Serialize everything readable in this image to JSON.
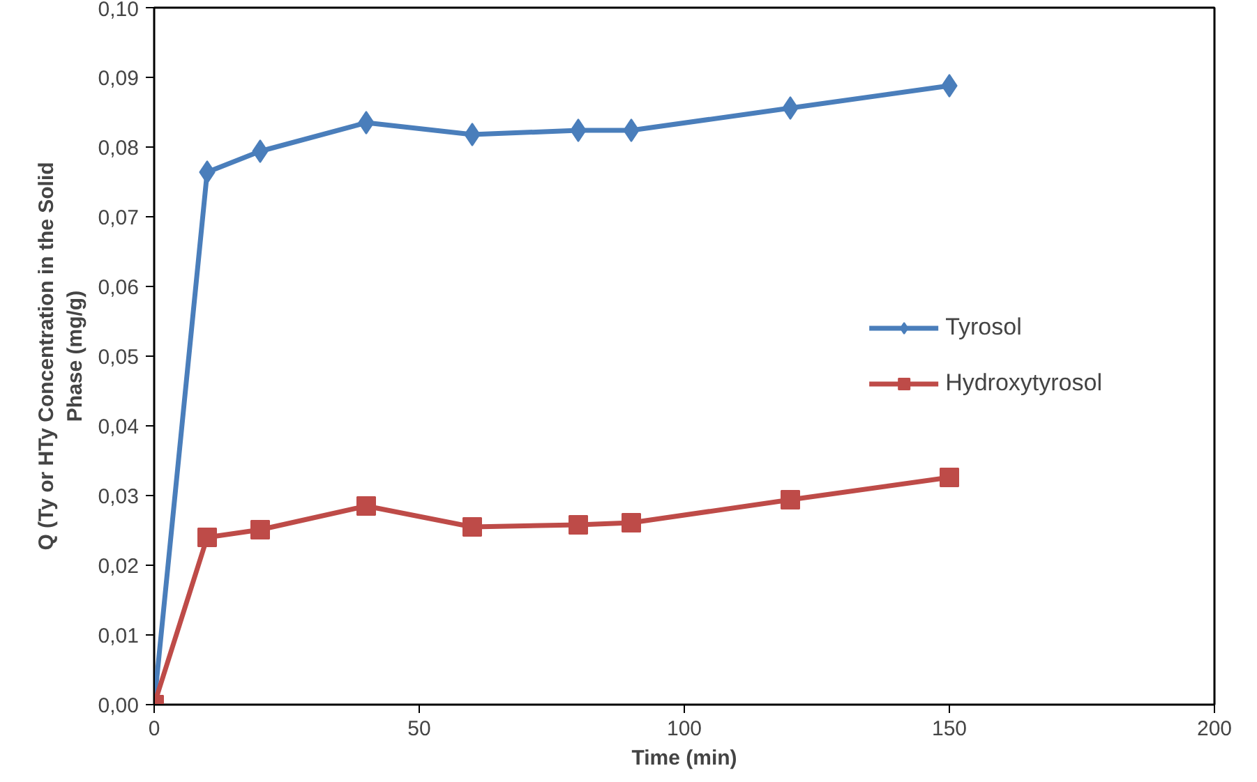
{
  "chart_data": {
    "type": "line",
    "xlabel": "Time (min)",
    "ylabel": "Q (Ty or HTy Concentration in the Solid\nPhase (mg/g)",
    "x": [
      0,
      10,
      20,
      40,
      60,
      80,
      90,
      120,
      150
    ],
    "series": [
      {
        "name": "Tyrosol",
        "color": "#4a7ebb",
        "marker": "diamond",
        "values": [
          0,
          0.0764,
          0.0794,
          0.0835,
          0.0818,
          0.0824,
          0.0824,
          0.0856,
          0.0888
        ]
      },
      {
        "name": "Hydroxytyrosol",
        "color": "#be4b48",
        "marker": "square",
        "values": [
          0,
          0.024,
          0.0251,
          0.0285,
          0.0255,
          0.0258,
          0.0261,
          0.0294,
          0.0326
        ]
      }
    ],
    "xlim": [
      0,
      200
    ],
    "xticks": [
      0,
      50,
      100,
      150,
      200
    ],
    "ylim": [
      0,
      0.1
    ],
    "yticks": [
      {
        "value": 0,
        "label": "0,00"
      },
      {
        "value": 0.01,
        "label": "0,01"
      },
      {
        "value": 0.02,
        "label": "0,02"
      },
      {
        "value": 0.03,
        "label": "0,03"
      },
      {
        "value": 0.04,
        "label": "0,04"
      },
      {
        "value": 0.05,
        "label": "0,05"
      },
      {
        "value": 0.06,
        "label": "0,06"
      },
      {
        "value": 0.07,
        "label": "0,07"
      },
      {
        "value": 0.08,
        "label": "0,08"
      },
      {
        "value": 0.09,
        "label": "0,09"
      },
      {
        "value": 0.1,
        "label": "0,10"
      }
    ],
    "grid": false,
    "legend": "right",
    "line_style": "solid"
  }
}
